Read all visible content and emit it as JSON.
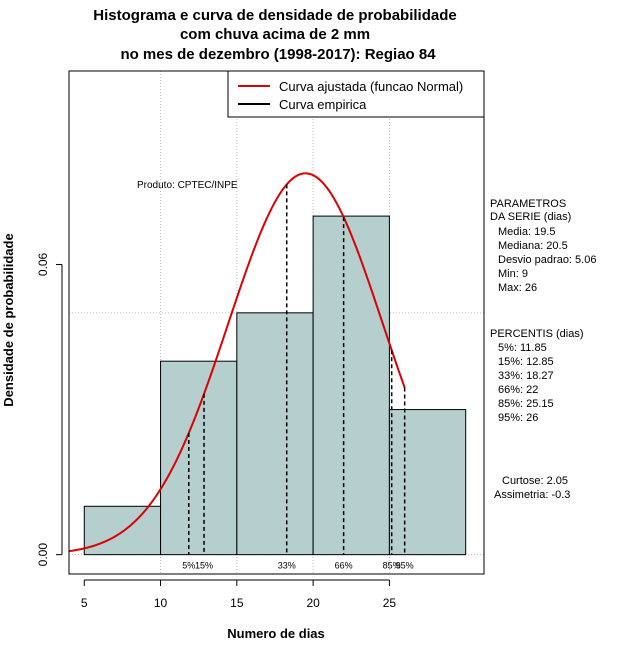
{
  "chart_data": {
    "type": "histogram",
    "title_lines": [
      "Histograma e curva de densidade de probabilidade",
      "com chuva acima de 2 mm",
      "no mes de dezembro (1998-2017): Regiao 84"
    ],
    "xlabel": "Numero de dias",
    "ylabel": "Densidade de probabilidade",
    "xlim": [
      4,
      31.2
    ],
    "ylim": [
      -0.004,
      0.1
    ],
    "x_ticks": [
      5,
      10,
      15,
      20,
      25
    ],
    "y_ticks": [
      0.0,
      0.06
    ],
    "y_tick_labels": [
      "0.00",
      "0.06"
    ],
    "grid_x": [
      10,
      15,
      20,
      25
    ],
    "grid_y": [
      0.0,
      0.05,
      0.1
    ],
    "bins": [
      {
        "start": 5,
        "end": 10,
        "density": 0.01
      },
      {
        "start": 10,
        "end": 15,
        "density": 0.04
      },
      {
        "start": 15,
        "end": 20,
        "density": 0.05
      },
      {
        "start": 20,
        "end": 25,
        "density": 0.07
      },
      {
        "start": 25,
        "end": 30,
        "density": 0.03
      }
    ],
    "normal_fit": {
      "mean": 19.5,
      "sd": 5.06,
      "x_from": 4,
      "x_to": 26
    },
    "percentiles": [
      {
        "label": "5%",
        "x": 11.85
      },
      {
        "label": "15%",
        "x": 12.85
      },
      {
        "label": "33%",
        "x": 18.27
      },
      {
        "label": "66%",
        "x": 22
      },
      {
        "label": "85%",
        "x": 25.15
      },
      {
        "label": "95%",
        "x": 26
      }
    ],
    "legend": [
      {
        "label": "Curva ajustada (funcao Normal)",
        "color": "#dd0000"
      },
      {
        "label": "Curva empirica",
        "color": "#000000"
      }
    ],
    "watermark": "Produto: CPTEC/INPE",
    "side_panel": {
      "param_title": [
        "PARAMETROS",
        "DA SERIE (dias)"
      ],
      "params": [
        "Media: 19.5",
        "Mediana: 20.5",
        "Desvio padrao: 5.06",
        "Min: 9",
        "Max: 26"
      ],
      "perc_title": "PERCENTIS (dias)",
      "percs": [
        "5%: 11.85",
        "15%: 12.85",
        "33%: 18.27",
        "66%: 22",
        "85%: 25.15",
        "95%: 26"
      ],
      "stats": [
        "Curtose: 2.05",
        "Assimetria: -0.3"
      ]
    },
    "colors": {
      "bar_fill": "#b5cece",
      "curve": "#dd0000",
      "grid": "#bbbbbb"
    }
  }
}
